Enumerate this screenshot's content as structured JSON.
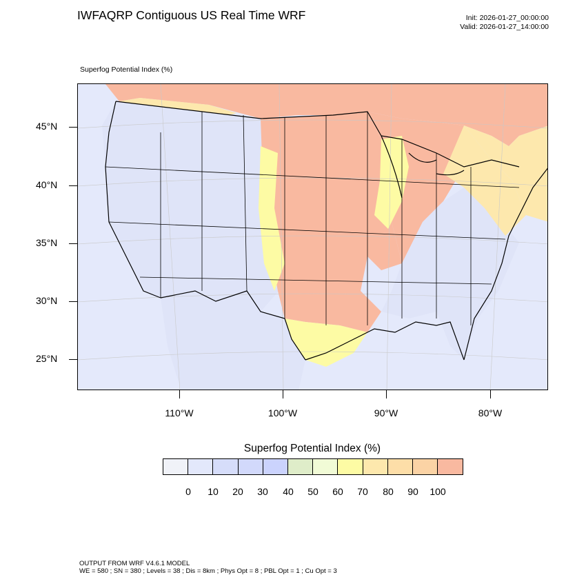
{
  "header": {
    "title": "IWFAQRP Contiguous US Real Time WRF",
    "init": "Init: 2026-01-27_00:00:00",
    "valid": "Valid: 2026-01-27_14:00:00"
  },
  "map": {
    "field_label": "Superfog Potential Index   (%)",
    "lat_labels": [
      "45°N",
      "40°N",
      "35°N",
      "30°N",
      "25°N"
    ],
    "lon_labels": [
      "110°W",
      "100°W",
      "90°W",
      "80°W"
    ],
    "ocean_color": "#e4e9fb",
    "high_color": "#f9b9a0",
    "low_land_color": "#dfe4f8",
    "region_values": {
      "canada_north": 100,
      "west_us": 10,
      "great_plains_midwest": 100,
      "southeast": 10,
      "northeast": 70,
      "texas_south": 100
    }
  },
  "legend": {
    "title": "Superfog Potential Index  (%)",
    "labels": [
      "0",
      "10",
      "20",
      "30",
      "40",
      "50",
      "60",
      "70",
      "80",
      "90",
      "100"
    ],
    "colors": [
      "#f0f2f8",
      "#e3e8fb",
      "#d6ddfa",
      "#d2d9fb",
      "#cbd3fd",
      "#dfedc9",
      "#f1fbd6",
      "#fdfba4",
      "#fde8ad",
      "#fddea8",
      "#fbd3a5",
      "#f9b9a0"
    ]
  },
  "footer": {
    "line1": "OUTPUT FROM WRF V4.6.1 MODEL",
    "line2": "WE = 580 ; SN = 380 ; Levels = 38 ; Dis = 8km ; Phys Opt = 8 ; PBL Opt = 1 ; Cu Opt = 3"
  }
}
